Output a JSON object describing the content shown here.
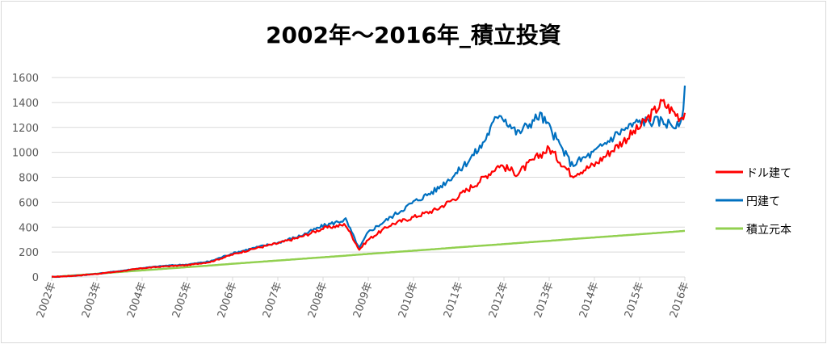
{
  "chart_data": {
    "type": "line",
    "title": "2002年～2016年_積立投資",
    "xlabel": "",
    "ylabel": "",
    "ylim": [
      0,
      1600
    ],
    "yticks": [
      0,
      200,
      400,
      600,
      800,
      1000,
      1200,
      1400,
      1600
    ],
    "categories": [
      "2002年",
      "2003年",
      "2004年",
      "2005年",
      "2006年",
      "2007年",
      "2008年",
      "2009年",
      "2010年",
      "2011年",
      "2012年",
      "2013年",
      "2014年",
      "2015年",
      "2016年"
    ],
    "x": [
      2002.0,
      2002.5,
      2003.0,
      2003.5,
      2004.0,
      2004.5,
      2005.0,
      2005.5,
      2006.0,
      2006.5,
      2007.0,
      2007.5,
      2008.0,
      2008.5,
      2008.8,
      2009.0,
      2009.5,
      2010.0,
      2010.5,
      2011.0,
      2011.5,
      2011.9,
      2012.3,
      2012.8,
      2013.0,
      2013.5,
      2014.0,
      2014.5,
      2015.0,
      2015.5,
      2015.9,
      2016.0
    ],
    "series": [
      {
        "name": "ドル建て",
        "color": "#ff0000",
        "values": [
          0,
          10,
          25,
          45,
          70,
          85,
          95,
          120,
          180,
          230,
          270,
          320,
          390,
          420,
          220,
          300,
          420,
          480,
          540,
          650,
          780,
          900,
          830,
          980,
          1030,
          820,
          900,
          1050,
          1200,
          1400,
          1280,
          1320
        ]
      },
      {
        "name": "円建て",
        "color": "#0070c0",
        "values": [
          0,
          10,
          25,
          48,
          72,
          90,
          100,
          125,
          190,
          235,
          275,
          330,
          410,
          460,
          230,
          360,
          480,
          600,
          700,
          850,
          1050,
          1320,
          1150,
          1300,
          1200,
          900,
          1000,
          1150,
          1250,
          1250,
          1200,
          1490
        ]
      },
      {
        "name": "積立元本",
        "color": "#92d050",
        "values": [
          0,
          13,
          26,
          40,
          53,
          66,
          79,
          92,
          106,
          119,
          132,
          145,
          158,
          171,
          180,
          185,
          198,
          211,
          224,
          238,
          251,
          261,
          272,
          285,
          290,
          304,
          317,
          330,
          343,
          356,
          367,
          370
        ]
      }
    ],
    "legend": "right",
    "grid": true
  }
}
